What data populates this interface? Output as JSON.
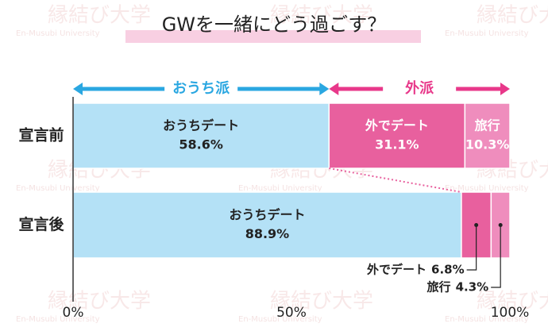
{
  "chart_data": {
    "type": "stacked-bar-horizontal",
    "title": "GWを一緒にどう過ごす？",
    "categories": [
      "宣言前",
      "宣言後"
    ],
    "series": [
      {
        "name": "おうちデート",
        "color": "#b4e1f6",
        "values": [
          58.6,
          88.9
        ],
        "value_labels": [
          "58.6%",
          "88.9%"
        ]
      },
      {
        "name": "外でデート",
        "color": "#e8609e",
        "values": [
          31.1,
          6.8
        ],
        "value_labels": [
          "31.1%",
          "6.8%"
        ]
      },
      {
        "name": "旅行",
        "color": "#ef8dbd",
        "values": [
          10.3,
          4.3
        ],
        "value_labels": [
          "10.3%",
          "4.3%"
        ]
      }
    ],
    "annotations": [
      "おうち派",
      "外派"
    ],
    "xlim": [
      0,
      100
    ],
    "xticks": [
      {
        "value": 0,
        "label": "0%"
      },
      {
        "value": 50,
        "label": "50%"
      },
      {
        "value": 100,
        "label": "100%"
      }
    ],
    "watermark": {
      "logo": "縁結び大学",
      "sub": "En-Musubi University"
    }
  }
}
